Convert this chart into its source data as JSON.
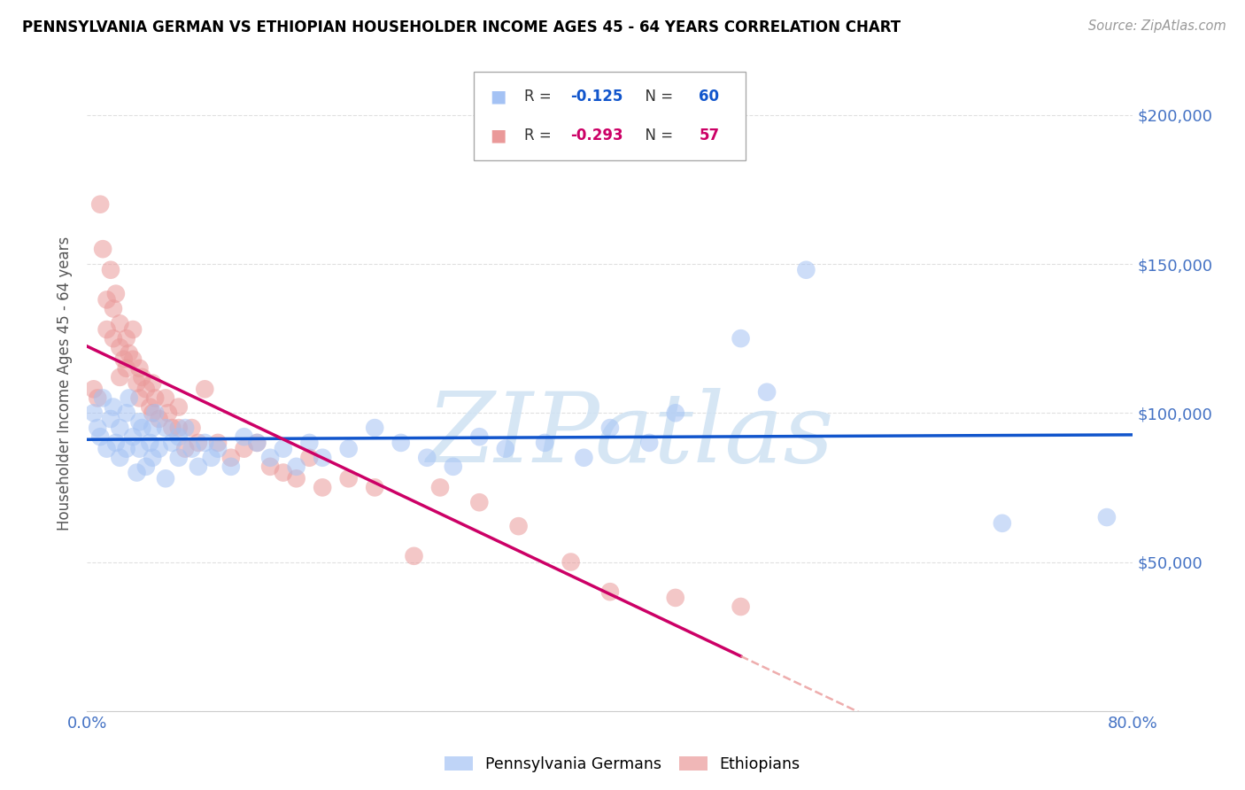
{
  "title": "PENNSYLVANIA GERMAN VS ETHIOPIAN HOUSEHOLDER INCOME AGES 45 - 64 YEARS CORRELATION CHART",
  "source": "Source: ZipAtlas.com",
  "ylabel": "Householder Income Ages 45 - 64 years",
  "y_ticks": [
    0,
    50000,
    100000,
    150000,
    200000
  ],
  "y_tick_labels": [
    "",
    "$50,000",
    "$100,000",
    "$150,000",
    "$200,000"
  ],
  "xmin": 0.0,
  "xmax": 0.8,
  "ymin": 0,
  "ymax": 220000,
  "blue_R": -0.125,
  "blue_N": 60,
  "pink_R": -0.293,
  "pink_N": 57,
  "blue_color": "#a4c2f4",
  "pink_color": "#ea9999",
  "blue_line_color": "#1155cc",
  "pink_line_color": "#cc0066",
  "pink_line_color_dash": "#ea9999",
  "legend_label_blue": "Pennsylvania Germans",
  "legend_label_pink": "Ethiopians",
  "title_color": "#000000",
  "source_color": "#999999",
  "tick_label_color": "#4472c4",
  "grid_color": "#cccccc",
  "blue_scatter_x": [
    0.005,
    0.008,
    0.01,
    0.012,
    0.015,
    0.018,
    0.02,
    0.022,
    0.025,
    0.025,
    0.03,
    0.03,
    0.032,
    0.035,
    0.038,
    0.04,
    0.04,
    0.042,
    0.045,
    0.048,
    0.05,
    0.05,
    0.052,
    0.055,
    0.06,
    0.06,
    0.065,
    0.07,
    0.07,
    0.075,
    0.08,
    0.085,
    0.09,
    0.095,
    0.1,
    0.11,
    0.12,
    0.13,
    0.14,
    0.15,
    0.16,
    0.17,
    0.18,
    0.2,
    0.22,
    0.24,
    0.26,
    0.28,
    0.3,
    0.32,
    0.35,
    0.38,
    0.4,
    0.43,
    0.45,
    0.5,
    0.52,
    0.55,
    0.7,
    0.78
  ],
  "blue_scatter_y": [
    100000,
    95000,
    92000,
    105000,
    88000,
    98000,
    102000,
    90000,
    95000,
    85000,
    100000,
    88000,
    105000,
    92000,
    80000,
    97000,
    88000,
    95000,
    82000,
    90000,
    95000,
    85000,
    100000,
    88000,
    95000,
    78000,
    90000,
    92000,
    85000,
    95000,
    88000,
    82000,
    90000,
    85000,
    88000,
    82000,
    92000,
    90000,
    85000,
    88000,
    82000,
    90000,
    85000,
    88000,
    95000,
    90000,
    85000,
    82000,
    92000,
    88000,
    90000,
    85000,
    95000,
    90000,
    100000,
    125000,
    107000,
    148000,
    63000,
    65000
  ],
  "pink_scatter_x": [
    0.005,
    0.008,
    0.01,
    0.012,
    0.015,
    0.015,
    0.018,
    0.02,
    0.02,
    0.022,
    0.025,
    0.025,
    0.025,
    0.028,
    0.03,
    0.03,
    0.032,
    0.035,
    0.035,
    0.038,
    0.04,
    0.04,
    0.042,
    0.045,
    0.048,
    0.05,
    0.05,
    0.052,
    0.055,
    0.06,
    0.062,
    0.065,
    0.07,
    0.07,
    0.075,
    0.08,
    0.085,
    0.09,
    0.1,
    0.11,
    0.12,
    0.13,
    0.14,
    0.15,
    0.16,
    0.17,
    0.18,
    0.2,
    0.22,
    0.25,
    0.27,
    0.3,
    0.33,
    0.37,
    0.4,
    0.45,
    0.5
  ],
  "pink_scatter_y": [
    108000,
    105000,
    170000,
    155000,
    138000,
    128000,
    148000,
    135000,
    125000,
    140000,
    130000,
    122000,
    112000,
    118000,
    125000,
    115000,
    120000,
    128000,
    118000,
    110000,
    115000,
    105000,
    112000,
    108000,
    102000,
    110000,
    100000,
    105000,
    98000,
    105000,
    100000,
    95000,
    102000,
    95000,
    88000,
    95000,
    90000,
    108000,
    90000,
    85000,
    88000,
    90000,
    82000,
    80000,
    78000,
    85000,
    75000,
    78000,
    75000,
    52000,
    75000,
    70000,
    62000,
    50000,
    40000,
    38000,
    35000
  ]
}
